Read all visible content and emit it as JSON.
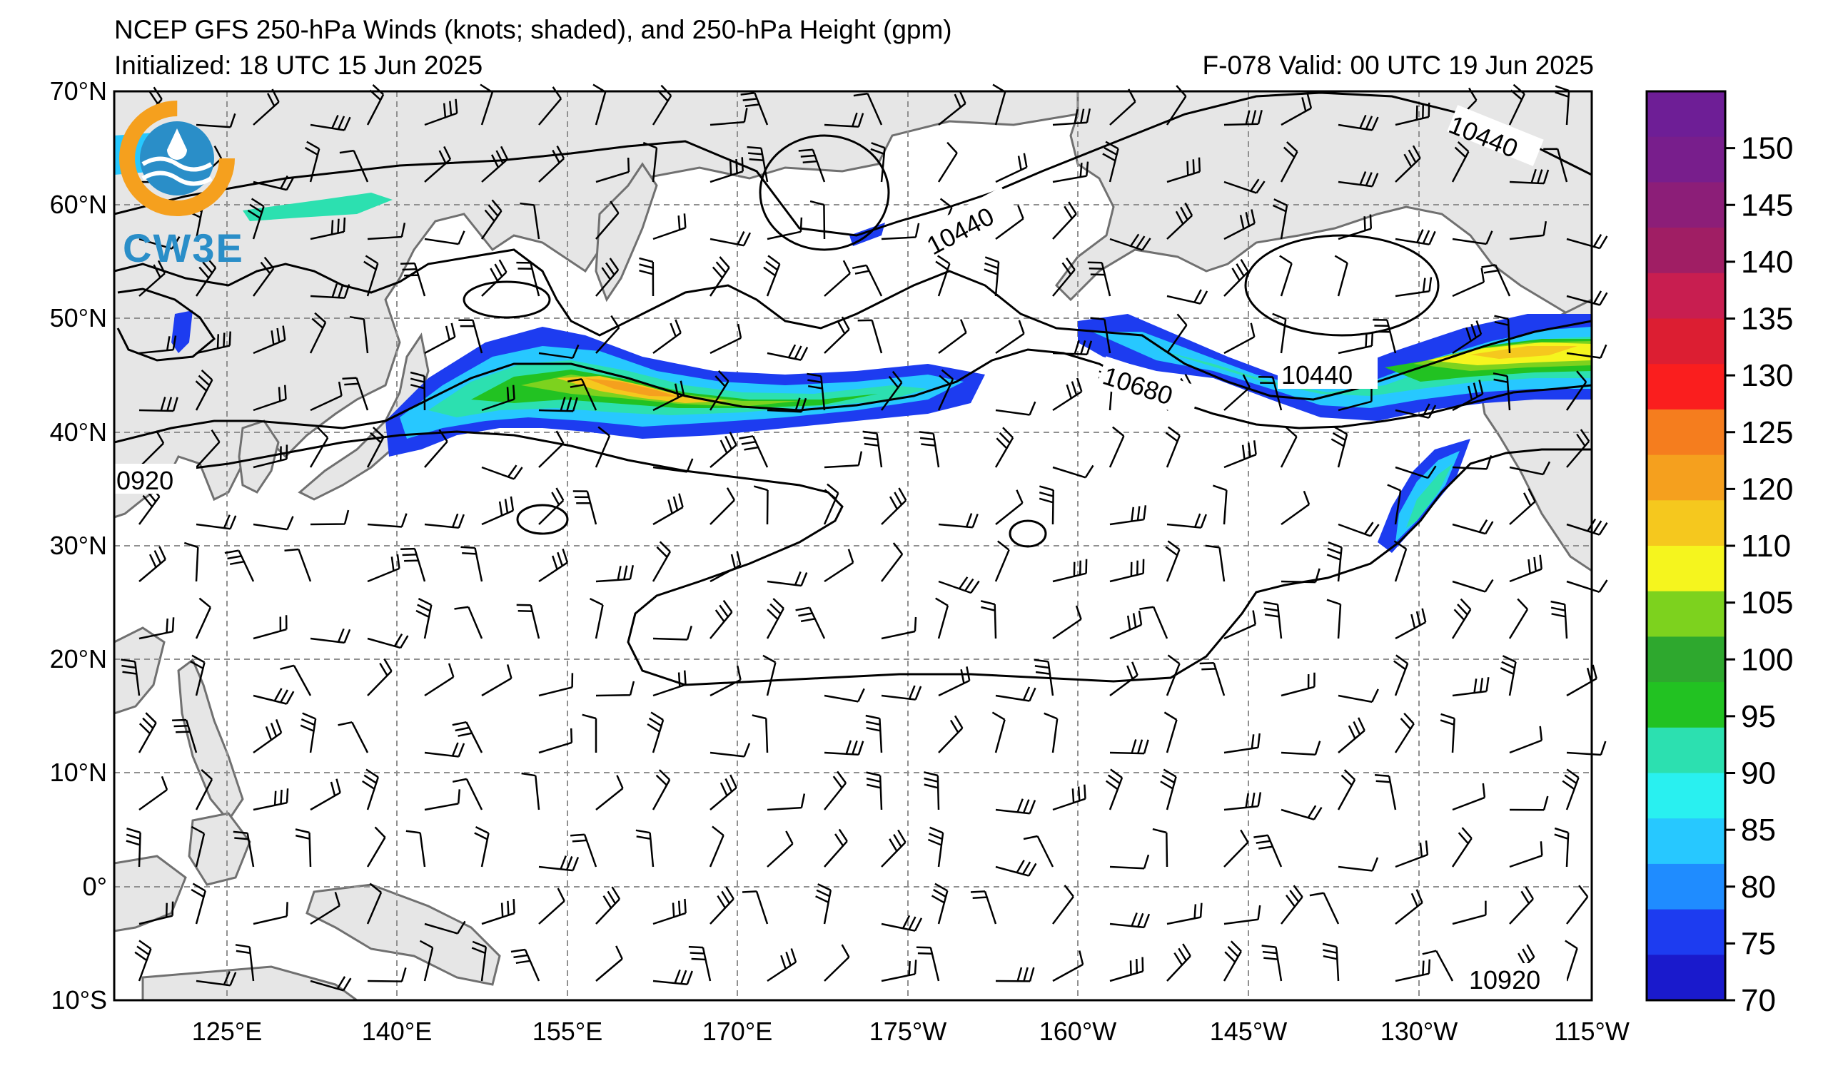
{
  "header": {
    "title": "NCEP GFS 250-hPa Winds (knots; shaded), and 250-hPa Height (gpm)",
    "initialized": "Initialized: 18 UTC 15 Jun 2025",
    "valid": "F-078  Valid: 00 UTC 19 Jun 2025"
  },
  "logo": {
    "text": "CW3E"
  },
  "axes": {
    "lat_labels": [
      "70°N",
      "60°N",
      "50°N",
      "40°N",
      "30°N",
      "20°N",
      "10°N",
      "0°",
      "10°S"
    ],
    "lon_labels": [
      "125°E",
      "140°E",
      "155°E",
      "170°E",
      "175°W",
      "160°W",
      "145°W",
      "130°W",
      "115°W"
    ]
  },
  "colorbar": {
    "labels": [
      "70",
      "75",
      "80",
      "85",
      "90",
      "95",
      "100",
      "105",
      "110",
      "120",
      "125",
      "130",
      "135",
      "140",
      "145",
      "150"
    ],
    "colors": [
      "#1a1acc",
      "#1d3cf0",
      "#1f8cff",
      "#27c8ff",
      "#29f0f0",
      "#2ce0b0",
      "#22c222",
      "#2ea82e",
      "#7dd21e",
      "#f5f51e",
      "#f5c81e",
      "#f5a01e",
      "#f57d1e",
      "#fa1e1e",
      "#dc1e32",
      "#c81e50",
      "#a01e64",
      "#8c1e78",
      "#781e8c",
      "#6e1e96"
    ]
  },
  "contour_labels": [
    "10440",
    "10440",
    "10440",
    "10680",
    "0920",
    "10920"
  ],
  "colors": {
    "land": "#e6e6e6",
    "coast": "#707070",
    "grid": "#909090"
  }
}
